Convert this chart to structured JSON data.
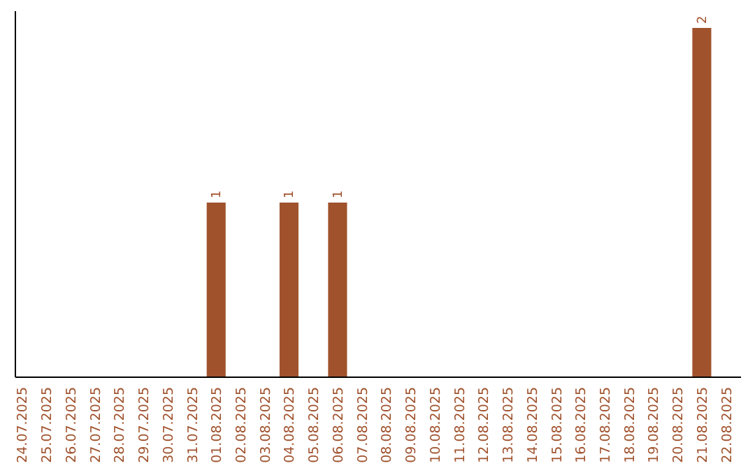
{
  "chart_data": {
    "type": "bar",
    "categories": [
      "24.07.2025",
      "25.07.2025",
      "26.07.2025",
      "27.07.2025",
      "28.07.2025",
      "29.07.2025",
      "30.07.2025",
      "31.07.2025",
      "01.08.2025",
      "02.08.2025",
      "03.08.2025",
      "04.08.2025",
      "05.08.2025",
      "06.08.2025",
      "07.08.2025",
      "08.08.2025",
      "09.08.2025",
      "10.08.2025",
      "11.08.2025",
      "12.08.2025",
      "13.08.2025",
      "14.08.2025",
      "15.08.2025",
      "16.08.2025",
      "17.08.2025",
      "18.08.2025",
      "19.08.2025",
      "20.08.2025",
      "21.08.2025",
      "22.08.2025"
    ],
    "values": [
      0,
      0,
      0,
      0,
      0,
      0,
      0,
      0,
      1,
      0,
      0,
      1,
      0,
      1,
      0,
      0,
      0,
      0,
      0,
      0,
      0,
      0,
      0,
      0,
      0,
      0,
      0,
      0,
      2,
      0
    ],
    "value_labels": [
      null,
      null,
      null,
      null,
      null,
      null,
      null,
      null,
      "1",
      null,
      null,
      "1",
      null,
      "1",
      null,
      null,
      null,
      null,
      null,
      null,
      null,
      null,
      null,
      null,
      null,
      null,
      null,
      null,
      "2",
      null
    ],
    "color": "#a0522d"
  }
}
